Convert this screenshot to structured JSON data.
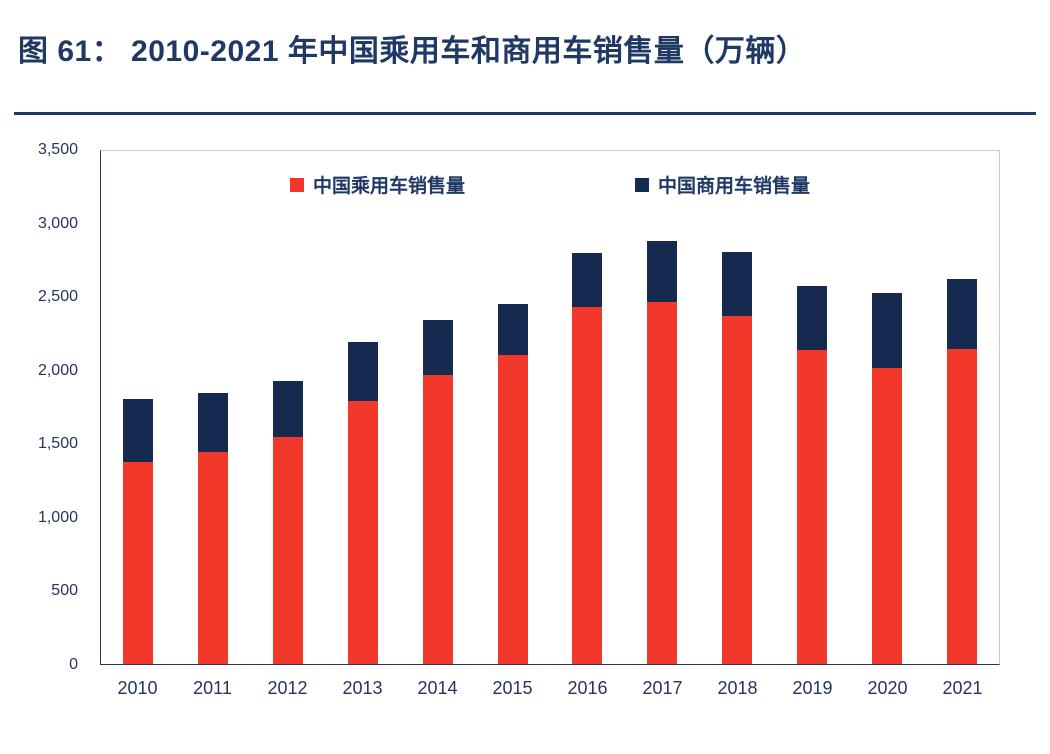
{
  "page": {
    "title": "图 61：  2010-2021 年中国乘用车和商用车销售量（万辆）"
  },
  "colors": {
    "title_navy": "#1f3864",
    "axis_text": "#25355f",
    "passenger_red": "#f2382b",
    "commercial_navy": "#16294e"
  },
  "chart_data": {
    "type": "bar",
    "stacked": true,
    "title": "图 61：2010-2021 年中国乘用车和商用车销售量（万辆）",
    "xlabel": "",
    "ylabel": "",
    "ylim": [
      0,
      3500
    ],
    "grid": false,
    "legend_position": "top-inside",
    "categories": [
      "2010",
      "2011",
      "2012",
      "2013",
      "2014",
      "2015",
      "2016",
      "2017",
      "2018",
      "2019",
      "2020",
      "2021"
    ],
    "series": [
      {
        "name": "中国乘用车销售量",
        "color": "#f2382b",
        "values": [
          1376,
          1447,
          1550,
          1793,
          1970,
          2110,
          2438,
          2472,
          2371,
          2144,
          2018,
          2148
        ]
      },
      {
        "name": "中国商用车销售量",
        "color": "#16294e",
        "values": [
          430,
          403,
          381,
          406,
          379,
          345,
          365,
          416,
          437,
          432,
          513,
          479
        ]
      }
    ],
    "totals": [
      1806,
      1850,
      1931,
      2199,
      2349,
      2455,
      2803,
      2888,
      2808,
      2576,
      2531,
      2627
    ],
    "yticks": [
      {
        "value": 0,
        "label": "0"
      },
      {
        "value": 500,
        "label": "500"
      },
      {
        "value": 1000,
        "label": "1,000"
      },
      {
        "value": 1500,
        "label": "1,500"
      },
      {
        "value": 2000,
        "label": "2,000"
      },
      {
        "value": 2500,
        "label": "2,500"
      },
      {
        "value": 3000,
        "label": "3,000"
      },
      {
        "value": 3500,
        "label": "3,500"
      }
    ]
  }
}
